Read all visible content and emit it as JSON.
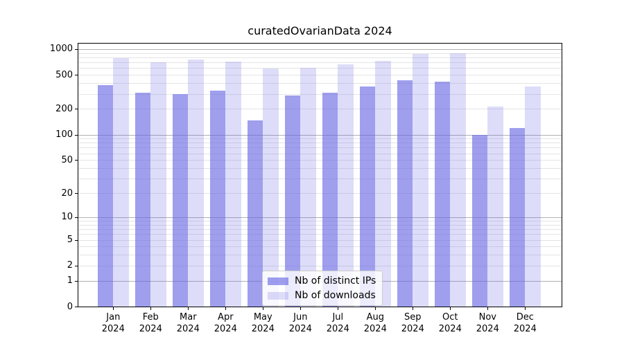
{
  "chart_data": {
    "type": "bar",
    "title": "curatedOvarianData 2024",
    "categories": [
      "Jan 2024",
      "Feb 2024",
      "Mar 2024",
      "Apr 2024",
      "May 2024",
      "Jun 2024",
      "Jul 2024",
      "Aug 2024",
      "Sep 2024",
      "Oct 2024",
      "Nov 2024",
      "Dec 2024"
    ],
    "month_labels": [
      {
        "month": "Jan",
        "year": "2024"
      },
      {
        "month": "Feb",
        "year": "2024"
      },
      {
        "month": "Mar",
        "year": "2024"
      },
      {
        "month": "Apr",
        "year": "2024"
      },
      {
        "month": "May",
        "year": "2024"
      },
      {
        "month": "Jun",
        "year": "2024"
      },
      {
        "month": "Jul",
        "year": "2024"
      },
      {
        "month": "Aug",
        "year": "2024"
      },
      {
        "month": "Sep",
        "year": "2024"
      },
      {
        "month": "Oct",
        "year": "2024"
      },
      {
        "month": "Nov",
        "year": "2024"
      },
      {
        "month": "Dec",
        "year": "2024"
      }
    ],
    "series": [
      {
        "name": "Nb of distinct IPs",
        "values": [
          380,
          310,
          300,
          330,
          148,
          290,
          310,
          365,
          430,
          415,
          100,
          120
        ]
      },
      {
        "name": "Nb of downloads",
        "values": [
          790,
          700,
          750,
          720,
          590,
          600,
          660,
          725,
          880,
          900,
          215,
          365
        ]
      }
    ],
    "xlabel": "",
    "ylabel": "",
    "yscale": "log1p",
    "ylim": [
      0,
      1180
    ],
    "ytick_values": [
      1000,
      500,
      200,
      100,
      50,
      20,
      10,
      5,
      2,
      1,
      0
    ],
    "ytick_labels": [
      "1000",
      "500",
      "200",
      "100",
      "50",
      "20",
      "10",
      "5",
      "2",
      "1",
      "0"
    ],
    "major_ticks": [
      1000,
      100,
      10,
      1,
      0
    ],
    "minor_gridline_values": [
      2,
      3,
      4,
      5,
      6,
      7,
      8,
      9,
      20,
      30,
      40,
      50,
      60,
      70,
      80,
      90,
      200,
      300,
      400,
      500,
      600,
      700,
      800,
      900
    ],
    "grid": true,
    "legend_position": "lower center"
  },
  "colors": {
    "bar_distinct_ips": "rgba(100,100,228,0.62)",
    "bar_downloads": "rgba(100,100,228,0.22)",
    "major_gridline": "#b0b0b0",
    "minor_gridline": "#e4e4e4",
    "axis": "#000000",
    "background": "#ffffff"
  },
  "legend": {
    "items": [
      {
        "label": "Nb of distinct IPs"
      },
      {
        "label": "Nb of downloads"
      }
    ]
  }
}
